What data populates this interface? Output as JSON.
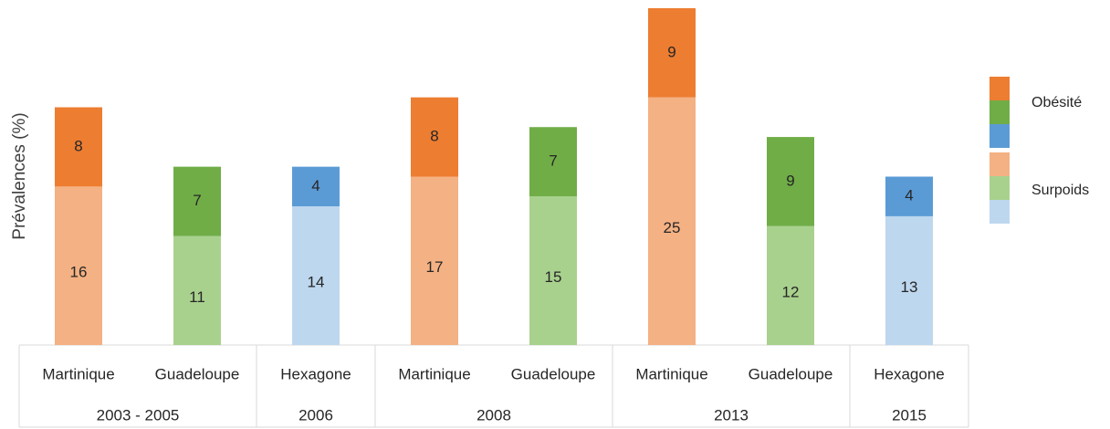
{
  "chart_data": {
    "type": "bar",
    "stacked": true,
    "y_label": "Prévalences (%)",
    "ylim": [
      0,
      34
    ],
    "groups": [
      {
        "label": "2003 - 2005",
        "categories": [
          "Martinique",
          "Guadeloupe"
        ]
      },
      {
        "label": "2006",
        "categories": [
          "Hexagone"
        ]
      },
      {
        "label": "2008",
        "categories": [
          "Martinique",
          "Guadeloupe"
        ]
      },
      {
        "label": "2013",
        "categories": [
          "Martinique",
          "Guadeloupe"
        ]
      },
      {
        "label": "2015",
        "categories": [
          "Hexagone"
        ]
      }
    ],
    "series": [
      {
        "name": "Surpoids",
        "values": [
          16,
          11,
          14,
          17,
          15,
          25,
          12,
          13
        ],
        "colors": [
          "#f4b183",
          "#a9d18e",
          "#bdd7ee",
          "#f4b183",
          "#a9d18e",
          "#f4b183",
          "#a9d18e",
          "#bdd7ee"
        ]
      },
      {
        "name": "Obésité",
        "values": [
          8,
          7,
          4,
          8,
          7,
          9,
          9,
          4
        ],
        "colors": [
          "#ed7d31",
          "#70ad47",
          "#5b9bd5",
          "#ed7d31",
          "#70ad47",
          "#ed7d31",
          "#70ad47",
          "#5b9bd5"
        ]
      }
    ]
  }
}
